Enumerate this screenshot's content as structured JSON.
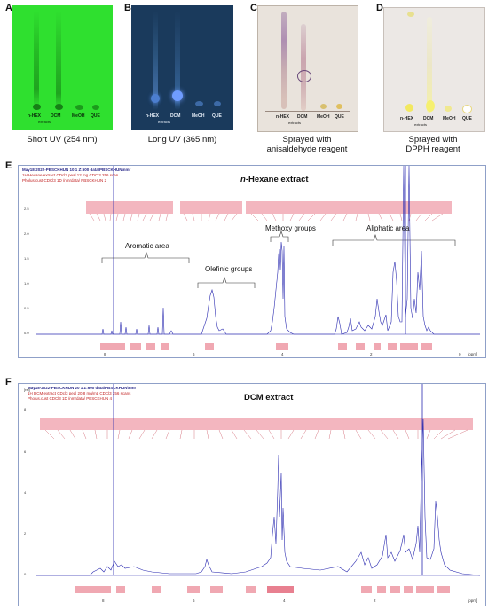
{
  "panels": {
    "A": {
      "letter": "A",
      "caption": "Short UV (254 nm)",
      "lanes": [
        "n-HEX",
        "DCM",
        "MeOH",
        "QUE"
      ],
      "sub": "extracts"
    },
    "B": {
      "letter": "B",
      "caption": "Long UV (365 nm)",
      "lanes": [
        "n-HEX",
        "DCM",
        "MeOH",
        "QUE"
      ],
      "sub": "extracts"
    },
    "C": {
      "letter": "C",
      "caption_l1": "Sprayed with",
      "caption_l2": "anisaldehyde reagent",
      "lanes": [
        "n-HEX",
        "DCM",
        "MeOH",
        "QUE"
      ],
      "sub": "extracts"
    },
    "D": {
      "letter": "D",
      "caption_l1": "Sprayed with",
      "caption_l2": "DPPH reagent",
      "lanes": [
        "n-HEX",
        "DCM",
        "MeOH",
        "QUE"
      ],
      "sub": "extracts"
    }
  },
  "spectrumE": {
    "letter": "E",
    "title": "n-Hexane extract",
    "title_prefix": "n",
    "title_rest": "-Hexane extract",
    "header_line1": "May18-2022-PBSCKHUN 10 1 Z:600 data\\PBSCKHUN\\nmr",
    "header_line2": "1H Hexane extract CDcl3 peal 12 mg CDCl3 256 scan",
    "header_line3": "Pholus.cust CDCl3 1D /nmrdata/ PBSCKHUN 2",
    "annotations": {
      "aromatic": "Aromatic area",
      "olefinic": "Olefinic groups",
      "methoxy": "Methoxy groups",
      "aliphatic": "Aliphatic area"
    },
    "xticks": [
      "8",
      "6",
      "4",
      "2",
      "0"
    ],
    "xunit": "[ppm]",
    "yticks": [
      "2.5",
      "2.0",
      "1.5",
      "1.0",
      "0.5",
      "0.0"
    ]
  },
  "spectrumF": {
    "letter": "F",
    "title": "DCM extract",
    "header_line1": "May18-2022-PBSCKHUN 20 1 Z:600 data\\PBSCKHUN\\nmr",
    "header_line2": "1H DCM extract CDcl3 peal 20.8 mg/mL CDCl3 256 scans",
    "header_line3": "Pholus.cust CDCl3 1D /nmrdata/ PBSCKHUN 4",
    "xticks": [
      "8",
      "6",
      "4",
      "2"
    ],
    "xunit": "[ppm]",
    "yticks": [
      "8",
      "6",
      "4",
      "2",
      "0"
    ],
    "yunit": "[rel]"
  },
  "colors": {
    "plateA": "#2fe02f",
    "plateB": "#1a3a5c",
    "plateC": "#e9e3dc",
    "plateD": "#ece8e5",
    "spectrum": "#2a2ab0",
    "peaklabel": "#f3b6bf"
  }
}
